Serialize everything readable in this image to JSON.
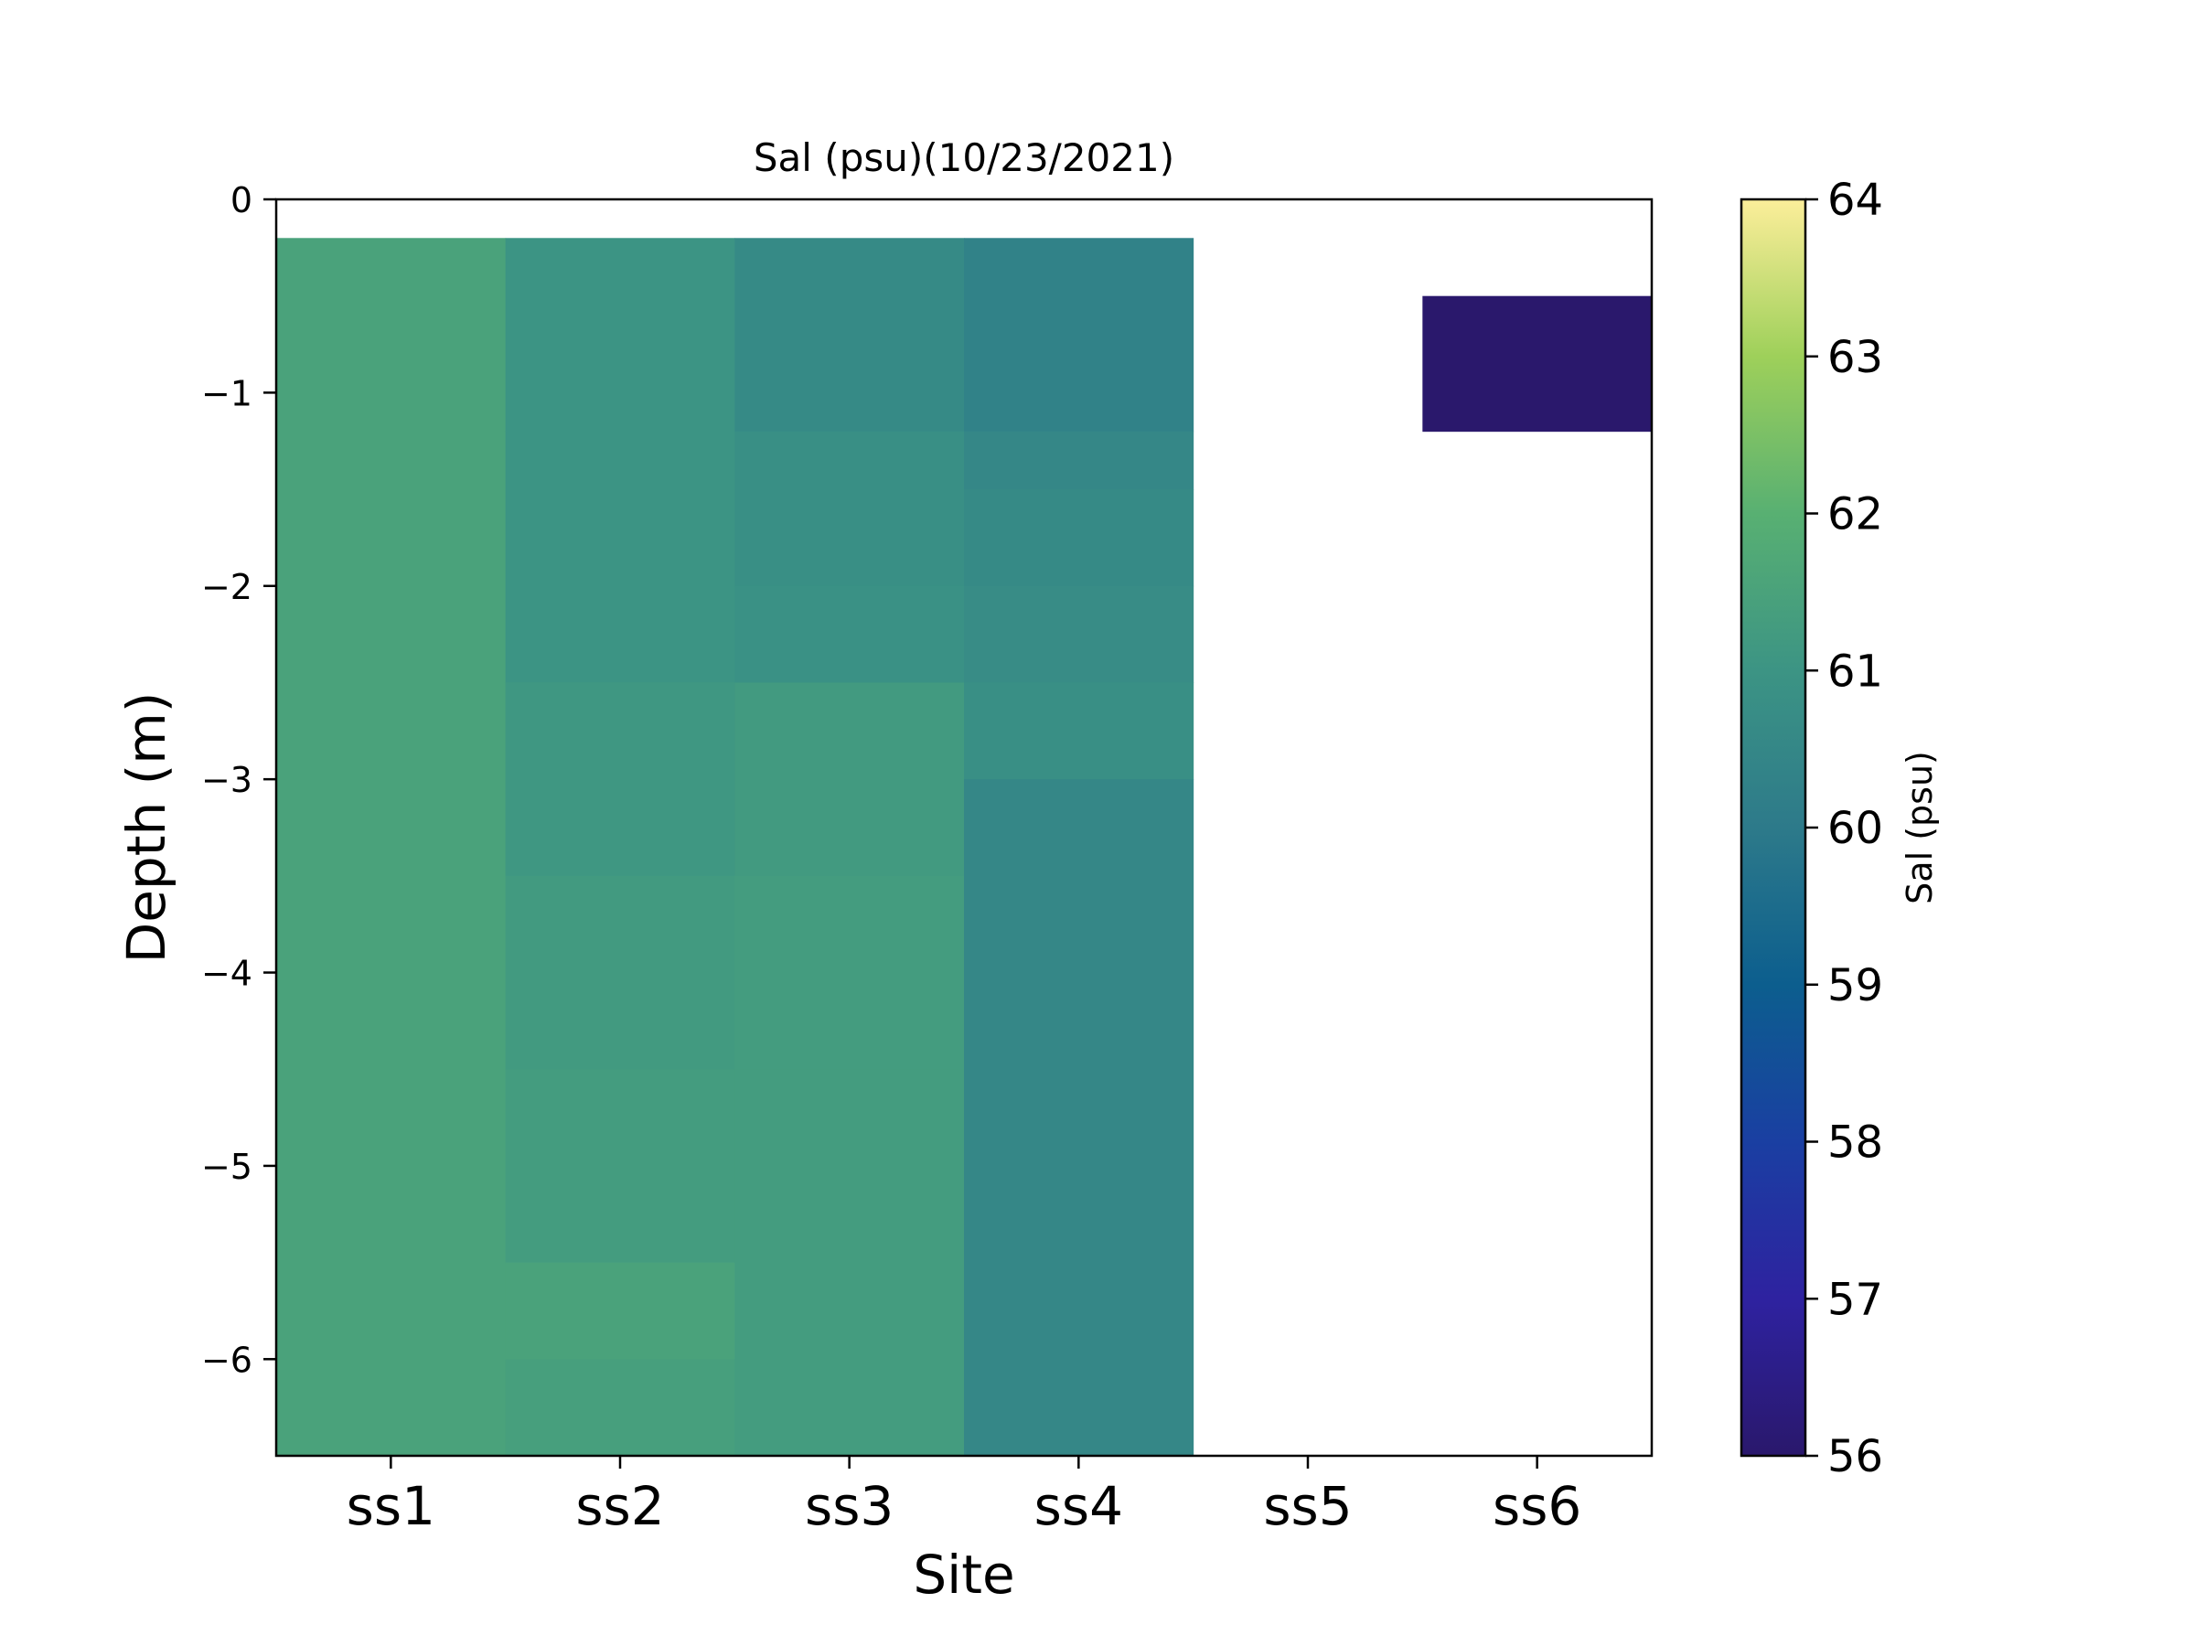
{
  "chart_data": {
    "type": "heatmap",
    "title": "Sal (psu)(10/23/2021)",
    "xlabel": "Site",
    "ylabel": "Depth (m)",
    "categories": [
      "ss1",
      "ss2",
      "ss3",
      "ss4",
      "ss5",
      "ss6"
    ],
    "ylim": [
      -6.5,
      0
    ],
    "yticks": [
      0,
      -1,
      -2,
      -3,
      -4,
      -5,
      -6
    ],
    "colorbar": {
      "label": "Sal (psu)",
      "range": [
        56,
        64
      ],
      "ticks": [
        56,
        57,
        58,
        59,
        60,
        61,
        62,
        63,
        64
      ],
      "colormap": "haline"
    },
    "cells": [
      {
        "site": "ss1",
        "depth_top": -0.2,
        "depth_bottom": -6.5,
        "value": 61.5
      },
      {
        "site": "ss2",
        "depth_top": -0.2,
        "depth_bottom": -1.2,
        "value": 61.0
      },
      {
        "site": "ss2",
        "depth_top": -1.2,
        "depth_bottom": -2.5,
        "value": 61.0
      },
      {
        "site": "ss2",
        "depth_top": -2.5,
        "depth_bottom": -3.5,
        "value": 61.1
      },
      {
        "site": "ss2",
        "depth_top": -3.5,
        "depth_bottom": -4.5,
        "value": 61.2
      },
      {
        "site": "ss2",
        "depth_top": -4.5,
        "depth_bottom": -5.5,
        "value": 61.3
      },
      {
        "site": "ss2",
        "depth_top": -5.5,
        "depth_bottom": -6.0,
        "value": 61.5
      },
      {
        "site": "ss2",
        "depth_top": -6.0,
        "depth_bottom": -6.5,
        "value": 61.4
      },
      {
        "site": "ss3",
        "depth_top": -0.2,
        "depth_bottom": -1.2,
        "value": 60.6
      },
      {
        "site": "ss3",
        "depth_top": -1.2,
        "depth_bottom": -2.0,
        "value": 60.8
      },
      {
        "site": "ss3",
        "depth_top": -2.0,
        "depth_bottom": -2.5,
        "value": 60.9
      },
      {
        "site": "ss3",
        "depth_top": -2.5,
        "depth_bottom": -3.5,
        "value": 61.2
      },
      {
        "site": "ss3",
        "depth_top": -3.5,
        "depth_bottom": -4.5,
        "value": 61.3
      },
      {
        "site": "ss3",
        "depth_top": -4.5,
        "depth_bottom": -6.5,
        "value": 61.3
      },
      {
        "site": "ss4",
        "depth_top": -0.2,
        "depth_bottom": -1.2,
        "value": 60.3
      },
      {
        "site": "ss4",
        "depth_top": -1.2,
        "depth_bottom": -1.5,
        "value": 60.5
      },
      {
        "site": "ss4",
        "depth_top": -1.5,
        "depth_bottom": -2.0,
        "value": 60.6
      },
      {
        "site": "ss4",
        "depth_top": -2.0,
        "depth_bottom": -2.5,
        "value": 60.7
      },
      {
        "site": "ss4",
        "depth_top": -2.5,
        "depth_bottom": -3.0,
        "value": 60.8
      },
      {
        "site": "ss4",
        "depth_top": -3.0,
        "depth_bottom": -6.5,
        "value": 60.5
      },
      {
        "site": "ss6",
        "depth_top": -0.5,
        "depth_bottom": -1.2,
        "value": 56.0
      }
    ]
  }
}
